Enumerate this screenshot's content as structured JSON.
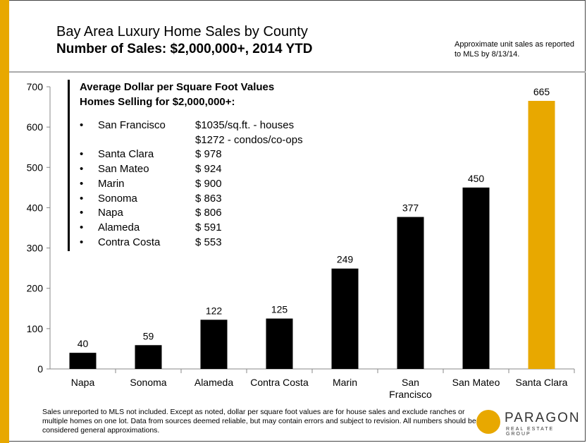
{
  "title": "Bay Area Luxury Home Sales by County",
  "subtitle": "Number of Sales: $2,000,000+, 2014 YTD",
  "note": "Approximate unit sales as reported to MLS by 8/13/14.",
  "callout": {
    "heading": [
      "Average Dollar per Square Foot Values",
      "Homes Selling for $2,000,000+:"
    ],
    "rows": [
      {
        "bullet": "•",
        "county": "San Francisco",
        "value": "$1035/sq.ft. - houses"
      },
      {
        "bullet": "",
        "county": "",
        "value": "$1272 - condos/co-ops"
      },
      {
        "bullet": "•",
        "county": "Santa Clara",
        "value": "$ 978"
      },
      {
        "bullet": "•",
        "county": "San Mateo",
        "value": "$ 924"
      },
      {
        "bullet": "•",
        "county": "Marin",
        "value": "$ 900"
      },
      {
        "bullet": "•",
        "county": "Sonoma",
        "value": "$ 863"
      },
      {
        "bullet": "•",
        "county": "Napa",
        "value": "$ 806"
      },
      {
        "bullet": "•",
        "county": "Alameda",
        "value": "$ 591"
      },
      {
        "bullet": "•",
        "county": "Contra Costa",
        "value": "$ 553"
      }
    ]
  },
  "footer": "Sales unreported to MLS not included. Except as noted, dollar per square foot values are for house sales and exclude ranches or multiple homes on one lot. Data from sources deemed reliable, but may contain errors and subject to revision. All numbers should be considered general approximations.",
  "logo": {
    "name": "PARAGON",
    "sub": "REAL ESTATE GROUP"
  },
  "colors": {
    "bar": "#000000",
    "highlight": "#E8A800",
    "accent": "#E8A800"
  },
  "chart_data": {
    "type": "bar",
    "categories": [
      "Napa",
      "Sonoma",
      "Alameda",
      "Contra Costa",
      "Marin",
      "San Francisco",
      "San Mateo",
      "Santa Clara"
    ],
    "category_lines": [
      [
        "Napa"
      ],
      [
        "Sonoma"
      ],
      [
        "Alameda"
      ],
      [
        "Contra Costa"
      ],
      [
        "Marin"
      ],
      [
        "San",
        "Francisco"
      ],
      [
        "San Mateo"
      ],
      [
        "Santa Clara"
      ]
    ],
    "values": [
      40,
      59,
      122,
      125,
      249,
      377,
      450,
      665
    ],
    "highlight_category": "Santa Clara",
    "ylim": [
      0,
      700
    ],
    "yticks": [
      0,
      100,
      200,
      300,
      400,
      500,
      600,
      700
    ],
    "grid": false,
    "data_labels": true
  }
}
